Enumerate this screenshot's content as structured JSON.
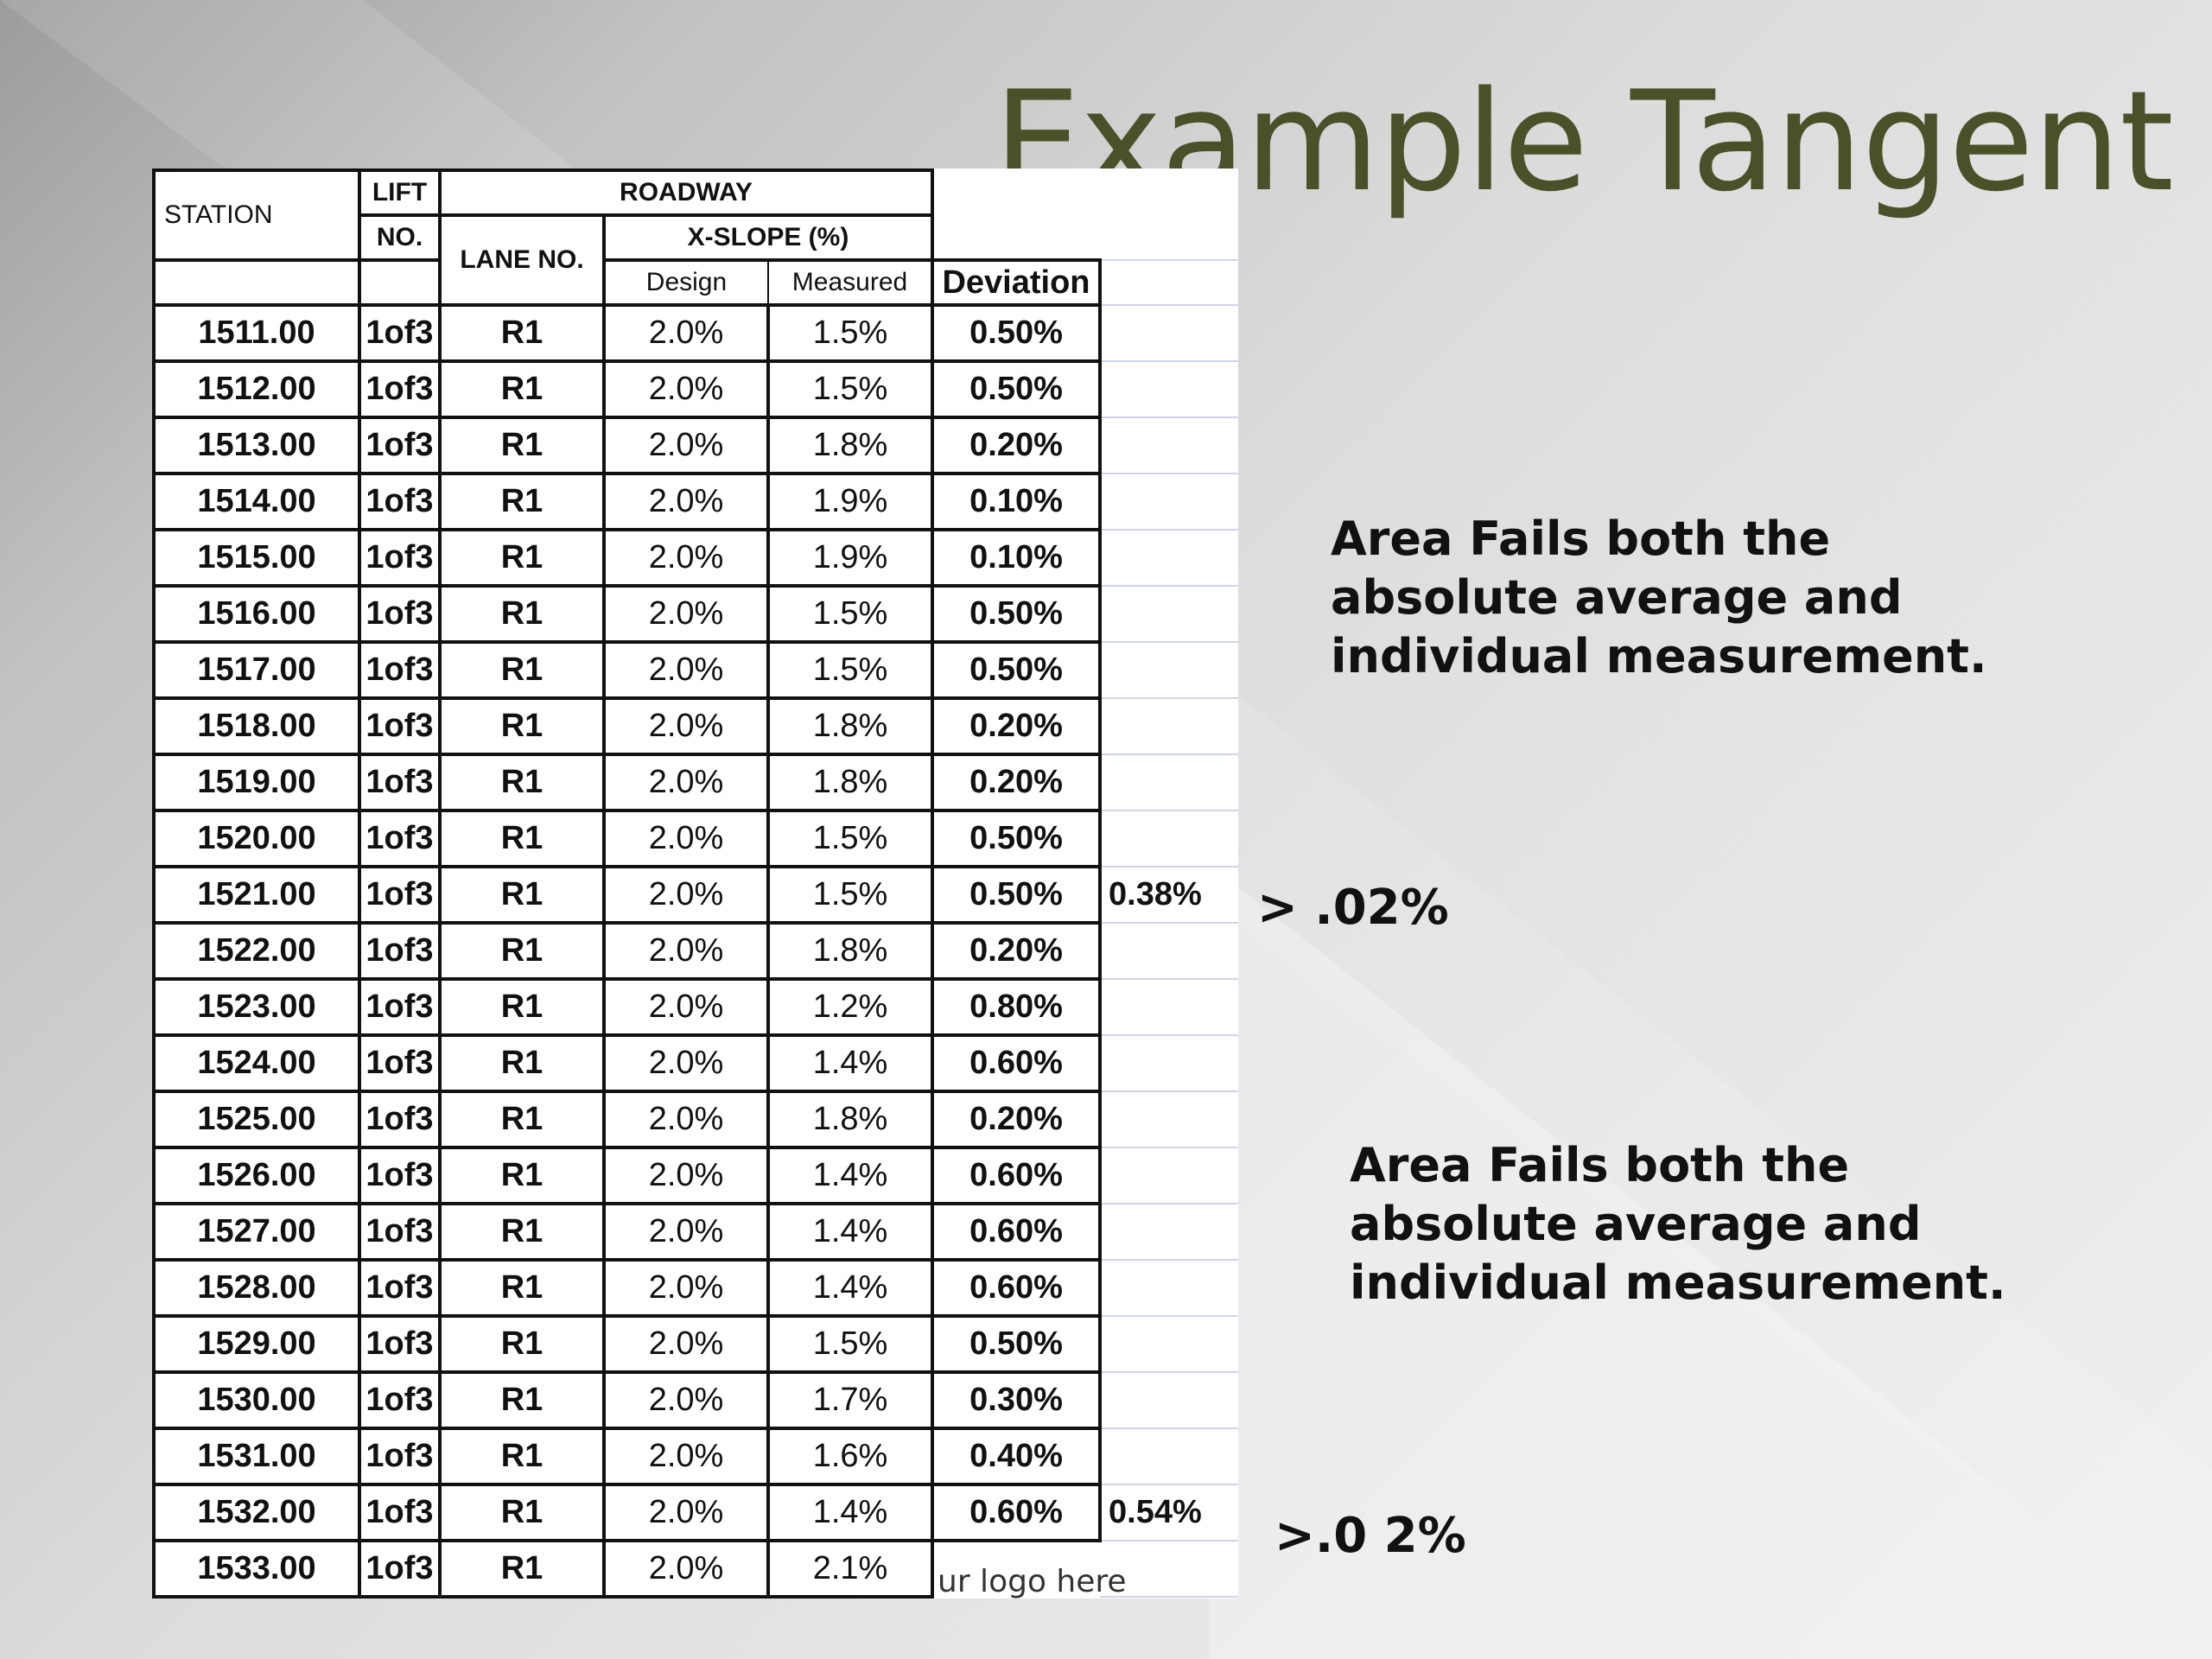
{
  "title": "Example Tangent",
  "table": {
    "header": {
      "station": "STATION",
      "lift_top": "LIFT",
      "lift_bottom": "NO.",
      "roadway": "ROADWAY",
      "lane": "LANE NO.",
      "xslope": "X-SLOPE (%)",
      "design": "Design",
      "measured": "Measured",
      "deviation": "Deviation"
    },
    "rows": [
      {
        "station": "1511.00",
        "lift": "1of3",
        "lane": "R1",
        "design": "2.0%",
        "measured": "1.5%",
        "deviation": "0.50%",
        "avg": ""
      },
      {
        "station": "1512.00",
        "lift": "1of3",
        "lane": "R1",
        "design": "2.0%",
        "measured": "1.5%",
        "deviation": "0.50%",
        "avg": ""
      },
      {
        "station": "1513.00",
        "lift": "1of3",
        "lane": "R1",
        "design": "2.0%",
        "measured": "1.8%",
        "deviation": "0.20%",
        "avg": ""
      },
      {
        "station": "1514.00",
        "lift": "1of3",
        "lane": "R1",
        "design": "2.0%",
        "measured": "1.9%",
        "deviation": "0.10%",
        "avg": ""
      },
      {
        "station": "1515.00",
        "lift": "1of3",
        "lane": "R1",
        "design": "2.0%",
        "measured": "1.9%",
        "deviation": "0.10%",
        "avg": ""
      },
      {
        "station": "1516.00",
        "lift": "1of3",
        "lane": "R1",
        "design": "2.0%",
        "measured": "1.5%",
        "deviation": "0.50%",
        "avg": ""
      },
      {
        "station": "1517.00",
        "lift": "1of3",
        "lane": "R1",
        "design": "2.0%",
        "measured": "1.5%",
        "deviation": "0.50%",
        "avg": ""
      },
      {
        "station": "1518.00",
        "lift": "1of3",
        "lane": "R1",
        "design": "2.0%",
        "measured": "1.8%",
        "deviation": "0.20%",
        "avg": ""
      },
      {
        "station": "1519.00",
        "lift": "1of3",
        "lane": "R1",
        "design": "2.0%",
        "measured": "1.8%",
        "deviation": "0.20%",
        "avg": ""
      },
      {
        "station": "1520.00",
        "lift": "1of3",
        "lane": "R1",
        "design": "2.0%",
        "measured": "1.5%",
        "deviation": "0.50%",
        "avg": ""
      },
      {
        "station": "1521.00",
        "lift": "1of3",
        "lane": "R1",
        "design": "2.0%",
        "measured": "1.5%",
        "deviation": "0.50%",
        "avg": "0.38%"
      },
      {
        "station": "1522.00",
        "lift": "1of3",
        "lane": "R1",
        "design": "2.0%",
        "measured": "1.8%",
        "deviation": "0.20%",
        "avg": ""
      },
      {
        "station": "1523.00",
        "lift": "1of3",
        "lane": "R1",
        "design": "2.0%",
        "measured": "1.2%",
        "deviation": "0.80%",
        "avg": ""
      },
      {
        "station": "1524.00",
        "lift": "1of3",
        "lane": "R1",
        "design": "2.0%",
        "measured": "1.4%",
        "deviation": "0.60%",
        "avg": ""
      },
      {
        "station": "1525.00",
        "lift": "1of3",
        "lane": "R1",
        "design": "2.0%",
        "measured": "1.8%",
        "deviation": "0.20%",
        "avg": ""
      },
      {
        "station": "1526.00",
        "lift": "1of3",
        "lane": "R1",
        "design": "2.0%",
        "measured": "1.4%",
        "deviation": "0.60%",
        "avg": ""
      },
      {
        "station": "1527.00",
        "lift": "1of3",
        "lane": "R1",
        "design": "2.0%",
        "measured": "1.4%",
        "deviation": "0.60%",
        "avg": ""
      },
      {
        "station": "1528.00",
        "lift": "1of3",
        "lane": "R1",
        "design": "2.0%",
        "measured": "1.4%",
        "deviation": "0.60%",
        "avg": ""
      },
      {
        "station": "1529.00",
        "lift": "1of3",
        "lane": "R1",
        "design": "2.0%",
        "measured": "1.5%",
        "deviation": "0.50%",
        "avg": ""
      },
      {
        "station": "1530.00",
        "lift": "1of3",
        "lane": "R1",
        "design": "2.0%",
        "measured": "1.7%",
        "deviation": "0.30%",
        "avg": ""
      },
      {
        "station": "1531.00",
        "lift": "1of3",
        "lane": "R1",
        "design": "2.0%",
        "measured": "1.6%",
        "deviation": "0.40%",
        "avg": ""
      },
      {
        "station": "1532.00",
        "lift": "1of3",
        "lane": "R1",
        "design": "2.0%",
        "measured": "1.4%",
        "deviation": "0.60%",
        "avg": "0.54%"
      },
      {
        "station": "1533.00",
        "lift": "1of3",
        "lane": "R1",
        "design": "2.0%",
        "measured": "2.1%",
        "deviation": "",
        "avg": ""
      }
    ]
  },
  "annotations": {
    "top_note": "Area Fails both the absolute average and individual measurement.",
    "top_threshold": "> .02%",
    "bottom_note": "Area Fails both the absolute average and individual measurement.",
    "bottom_threshold": ">.0 2%"
  },
  "footer": {
    "logo_text": "ur logo here"
  }
}
